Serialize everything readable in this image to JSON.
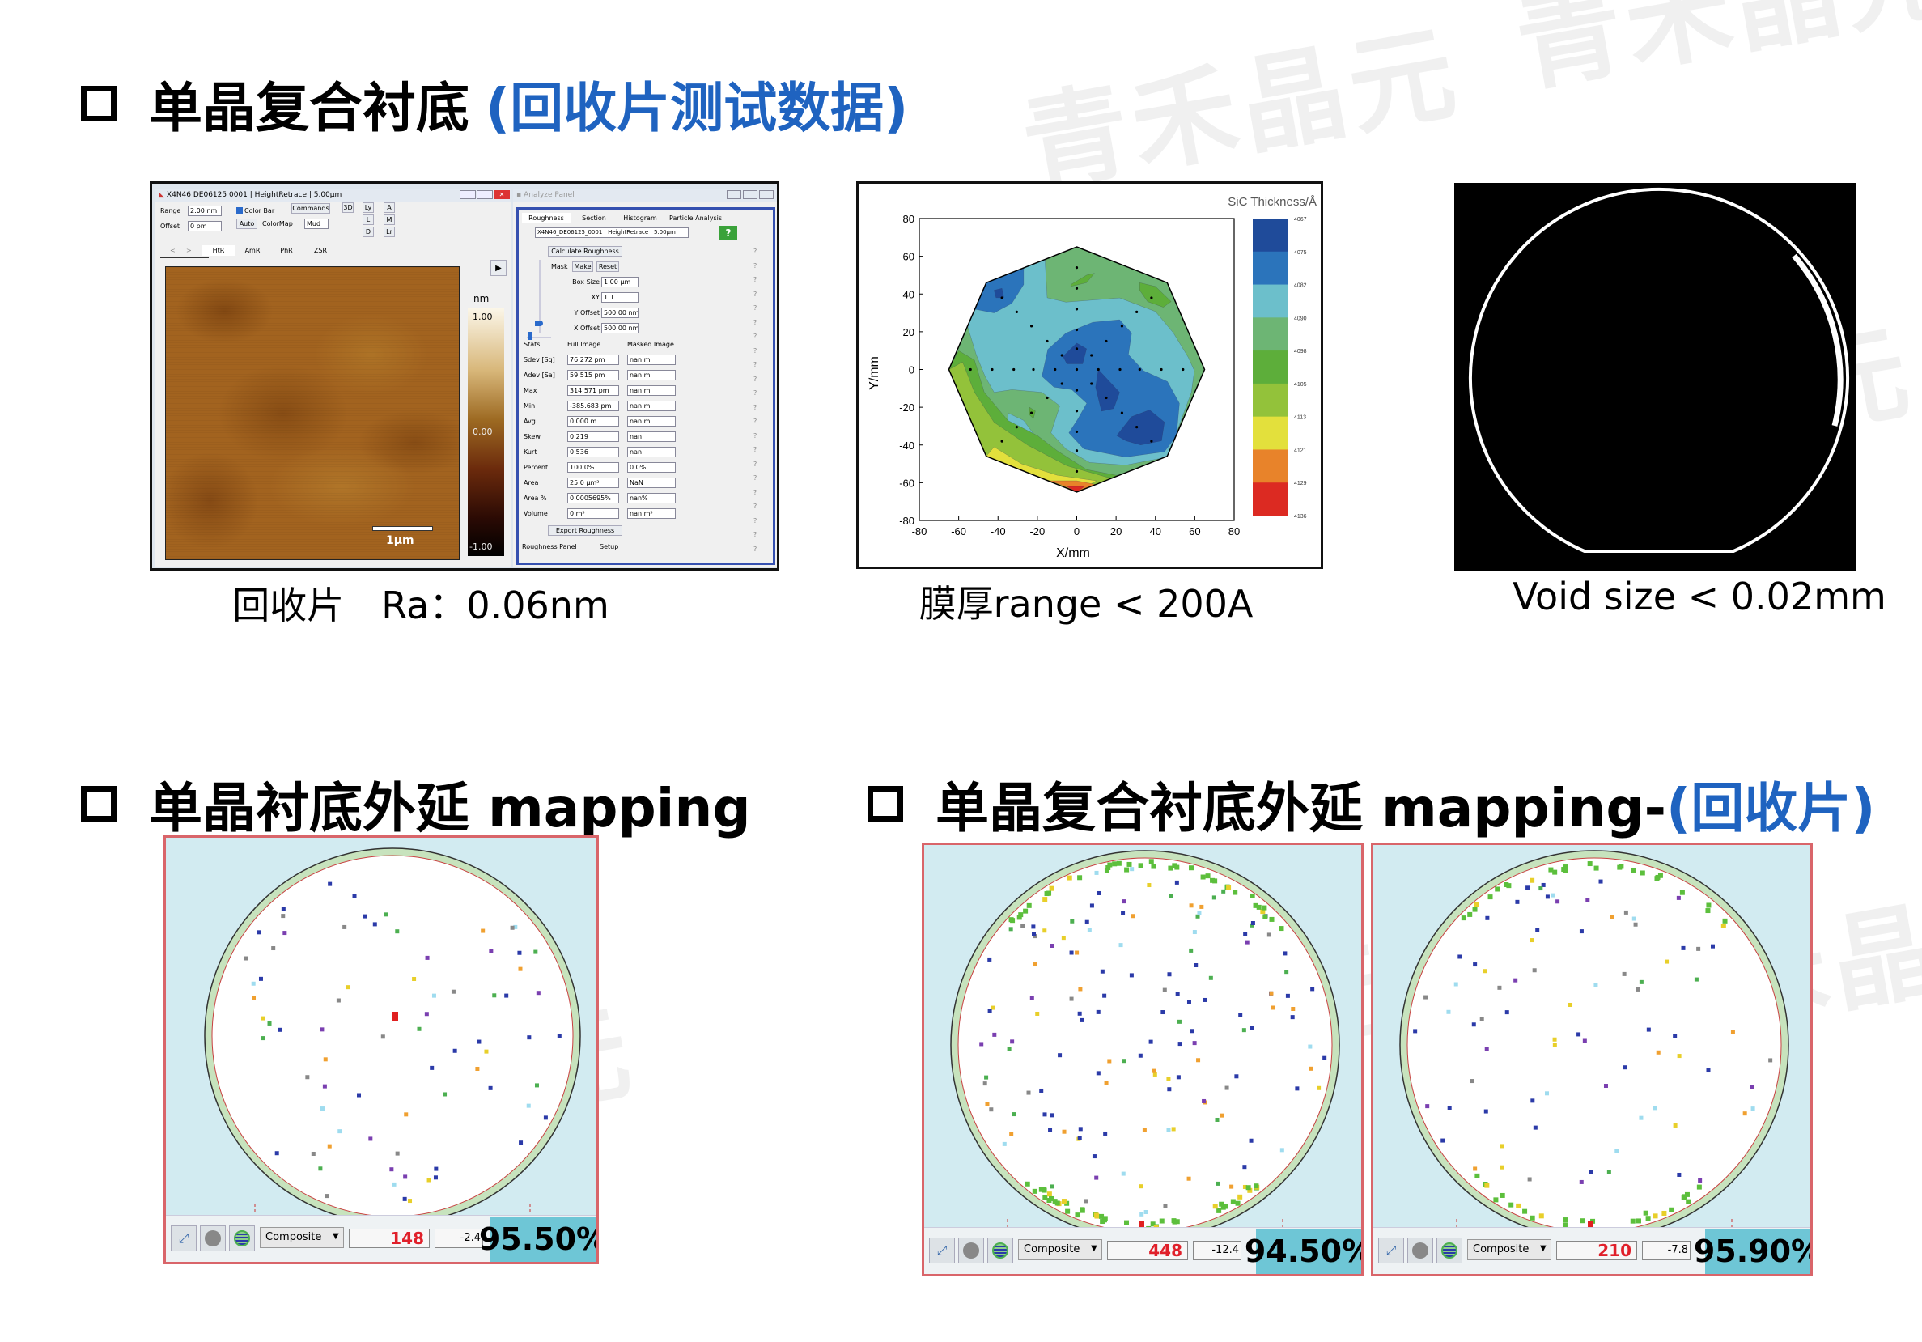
{
  "watermark": "青禾晶元",
  "section1": {
    "title_main": "单晶复合衬底",
    "title_sub": "(回收片测试数据)"
  },
  "afm": {
    "window_title": "X4N46 DE06125 0001 | HeightRetrace | 5.00μm",
    "range_label": "Range",
    "range_value": "2.00 nm",
    "offset_label": "Offset",
    "offset_value": "0 pm",
    "colorbar_checkbox": "Color Bar",
    "colorbar_checked": true,
    "commands": "Commands",
    "auto": "Auto",
    "colormap_label": "ColorMap",
    "colormap_value": "Mud",
    "tool_buttons": [
      "3D",
      "Ly",
      "L",
      "D",
      "A",
      "M",
      "Lr"
    ],
    "nav": [
      "<",
      ">"
    ],
    "tabs": [
      "HtR",
      "AmR",
      "PhR",
      "ZSR"
    ],
    "active_tab": "HtR",
    "scale_bar": "1μm",
    "cbar_unit": "nm",
    "cbar_ticks": [
      "1.00",
      "0.00",
      "-1.00"
    ]
  },
  "analyze": {
    "window_title": "Analyze Panel",
    "tabs": [
      "Roughness",
      "Section",
      "Histogram",
      "Particle Analysis"
    ],
    "active_tab": "Roughness",
    "file": "X4N46_DE06125_0001 | HeightRetrace | 5.00μm",
    "help": "?",
    "calculate": "Calculate Roughness",
    "mask": "Mask",
    "make": "Make",
    "reset": "Reset",
    "box_size_label": "Box Size",
    "box_size": "1.00 μm",
    "xy_label": "XY",
    "xy": "1:1",
    "yoffset_label": "Y Offset",
    "yoffset": "500.00 nm",
    "xoffset_label": "X Offset",
    "xoffset": "500.00 nm",
    "headers": [
      "Stats",
      "Full Image",
      "Masked Image"
    ],
    "rows": [
      {
        "stat": "Sdev [Sq]",
        "full": "76.272 pm",
        "masked": "nan m"
      },
      {
        "stat": "Adev [Sa]",
        "full": "59.515 pm",
        "masked": "nan m"
      },
      {
        "stat": "Max",
        "full": "314.571 pm",
        "masked": "nan m"
      },
      {
        "stat": "Min",
        "full": "-385.683 pm",
        "masked": "nan m"
      },
      {
        "stat": "Avg",
        "full": "0.000 m",
        "masked": "nan m"
      },
      {
        "stat": "Skew",
        "full": "0.219",
        "masked": "nan"
      },
      {
        "stat": "Kurt",
        "full": "0.536",
        "masked": "nan"
      },
      {
        "stat": "Percent",
        "full": "100.0%",
        "masked": "0.0%"
      },
      {
        "stat": "Area",
        "full": "25.0 μm²",
        "masked": "NaN"
      },
      {
        "stat": "Area %",
        "full": "0.0005695%",
        "masked": "nan%"
      },
      {
        "stat": "Volume",
        "full": "0 m³",
        "masked": "nan m³"
      }
    ],
    "export": "Export Roughness",
    "roughness_panel": "Roughness Panel",
    "setup": "Setup"
  },
  "captions": {
    "afm": "回收片　Ra：0.06nm",
    "thickness": "膜厚range < 200A",
    "void": "Void size < 0.02mm"
  },
  "chart_data": {
    "type": "heatmap",
    "subtype": "filled-contour",
    "xlabel": "X/mm",
    "ylabel": "Y/mm",
    "xlim": [
      -80,
      80
    ],
    "ylim": [
      -80,
      80
    ],
    "xticks": [
      -80,
      -60,
      -40,
      -20,
      0,
      20,
      40,
      60,
      80
    ],
    "yticks": [
      -80,
      -60,
      -40,
      -20,
      0,
      20,
      40,
      60,
      80
    ],
    "colorbar_title": "SiC Thickness/Å",
    "colorbar_levels": [
      4067,
      4075,
      4082,
      4090,
      4098,
      4105,
      4113,
      4121,
      4129,
      4136
    ],
    "colorbar_colors": [
      "#1f4b9a",
      "#2b74bb",
      "#6cbfcb",
      "#6db574",
      "#5dae3a",
      "#93c23a",
      "#e3e03c",
      "#e8832a",
      "#dc2a22"
    ],
    "wafer_outline": [
      [
        0,
        65
      ],
      [
        46,
        46
      ],
      [
        65,
        0
      ],
      [
        46,
        -46
      ],
      [
        0,
        -65
      ],
      [
        -46,
        -46
      ],
      [
        -65,
        0
      ],
      [
        -46,
        46
      ]
    ],
    "contours": [
      {
        "level": 4090,
        "polygon": [
          [
            -16,
            62
          ],
          [
            -16,
            56
          ],
          [
            -15,
            38
          ],
          [
            -5.5,
            35.7
          ],
          [
            21.8,
            37.9
          ],
          [
            40,
            30.7
          ],
          [
            49.2,
            19.3
          ],
          [
            56.7,
            6.4
          ],
          [
            59.8,
            -0.7
          ],
          [
            58.3,
            -12.1
          ],
          [
            52.2,
            -29.3
          ],
          [
            46.1,
            -46.4
          ],
          [
            24.8,
            -50.7
          ],
          [
            6.6,
            -49.3
          ],
          [
            -5.5,
            -42.1
          ],
          [
            -13.1,
            -33.6
          ],
          [
            -8.6,
            -19.3
          ],
          [
            -17.7,
            -12.1
          ],
          [
            -32.9,
            -10.7
          ],
          [
            -42,
            -12.1
          ],
          [
            -46.6,
            -3.6
          ],
          [
            -51.1,
            7.9
          ],
          [
            -55.7,
            23.6
          ],
          [
            -48,
            40
          ],
          [
            -40,
            50
          ],
          [
            -25,
            58
          ]
        ]
      },
      {
        "level": 4090,
        "polygon": [
          [
            -35,
            -23
          ],
          [
            -27,
            -27
          ],
          [
            -22,
            -34
          ],
          [
            -30,
            -36
          ],
          [
            -35,
            -30
          ]
        ]
      },
      {
        "level": 4105,
        "polygon": [
          [
            -3,
            45
          ],
          [
            5,
            50
          ],
          [
            9,
            51
          ],
          [
            5,
            46
          ],
          [
            -3,
            44
          ]
        ]
      },
      {
        "level": 4105,
        "polygon": [
          [
            32,
            46
          ],
          [
            40,
            44
          ],
          [
            48,
            36
          ],
          [
            44,
            33
          ],
          [
            36,
            36
          ],
          [
            32,
            42
          ]
        ]
      },
      {
        "level": 4105,
        "polygon": [
          [
            -24,
            -20
          ],
          [
            -21,
            -22
          ],
          [
            -22,
            -26
          ],
          [
            -24,
            -24
          ]
        ]
      },
      {
        "level": 4105,
        "polygon": [
          [
            -65,
            0
          ],
          [
            -60,
            10
          ],
          [
            -52,
            5
          ],
          [
            -47,
            -12
          ],
          [
            -35,
            -27
          ],
          [
            -20,
            -35
          ],
          [
            -10,
            -43
          ],
          [
            5,
            -53
          ],
          [
            20,
            -56
          ],
          [
            32,
            -56
          ],
          [
            0,
            -65
          ],
          [
            -46,
            -46
          ]
        ]
      },
      {
        "level": 4113,
        "polygon": [
          [
            -65,
            0
          ],
          [
            -58,
            4
          ],
          [
            -52,
            -12
          ],
          [
            -42,
            -28
          ],
          [
            -25,
            -40
          ],
          [
            -5,
            -51
          ],
          [
            15,
            -57
          ],
          [
            25,
            -59
          ],
          [
            0,
            -65
          ],
          [
            -46,
            -46
          ]
        ]
      },
      {
        "level": 4121,
        "polygon": [
          [
            -46,
            -46
          ],
          [
            -42,
            -41
          ],
          [
            -28,
            -50
          ],
          [
            -10,
            -56
          ],
          [
            10,
            -59
          ],
          [
            0,
            -65
          ]
        ]
      },
      {
        "level": 4129,
        "polygon": [
          [
            -14,
            -59
          ],
          [
            0,
            -59
          ],
          [
            10,
            -61
          ],
          [
            0,
            -65
          ],
          [
            -8,
            -61
          ]
        ]
      },
      {
        "level": 4136,
        "polygon": [
          [
            -5,
            -62
          ],
          [
            4,
            -62
          ],
          [
            0,
            -65
          ]
        ]
      },
      {
        "level": 4082,
        "polygon": [
          [
            -47,
            46
          ],
          [
            -27,
            56
          ],
          [
            -27,
            45
          ],
          [
            -33,
            35
          ],
          [
            -42,
            30
          ],
          [
            -52,
            32
          ]
        ]
      },
      {
        "level": 4075,
        "polygon": [
          [
            -42,
            42
          ],
          [
            -38,
            43
          ],
          [
            -37,
            38
          ],
          [
            -41,
            38
          ]
        ]
      },
      {
        "level": 4082,
        "polygon": [
          [
            -17.7,
            -3.6
          ],
          [
            -14.7,
            10.7
          ],
          [
            -5.5,
            19.3
          ],
          [
            8.1,
            25
          ],
          [
            21.8,
            26.4
          ],
          [
            27.9,
            19.3
          ],
          [
            26.3,
            7.9
          ],
          [
            34,
            -0.7
          ],
          [
            46.1,
            -6.4
          ],
          [
            52.2,
            -17.9
          ],
          [
            50.7,
            -35
          ],
          [
            44.6,
            -43.6
          ],
          [
            24.8,
            -46.4
          ],
          [
            3.6,
            -42.1
          ],
          [
            -4,
            -33.6
          ],
          [
            0.5,
            -26.4
          ],
          [
            5.1,
            -17.9
          ],
          [
            -2.5,
            -10.7
          ],
          [
            -11.6,
            -9.3
          ]
        ]
      },
      {
        "level": 4075,
        "polygon": [
          [
            -7,
            7
          ],
          [
            0,
            14
          ],
          [
            5,
            11
          ],
          [
            3,
            3
          ],
          [
            -5,
            3
          ]
        ]
      },
      {
        "level": 4075,
        "polygon": [
          [
            11,
            0
          ],
          [
            21.8,
            -12.1
          ],
          [
            18.8,
            -20.7
          ],
          [
            12.6,
            -22.1
          ],
          [
            9.6,
            -9.3
          ]
        ]
      },
      {
        "level": 4075,
        "polygon": [
          [
            20.3,
            -35
          ],
          [
            27.9,
            -25
          ],
          [
            37,
            -21.4
          ],
          [
            44.6,
            -27.9
          ],
          [
            43.1,
            -37.8
          ],
          [
            32.5,
            -40
          ],
          [
            25,
            -37.8
          ]
        ]
      }
    ],
    "measurement_points": [
      [
        0,
        54
      ],
      [
        0,
        43
      ],
      [
        0,
        32
      ],
      [
        0,
        21
      ],
      [
        0,
        11
      ],
      [
        0,
        0
      ],
      [
        0,
        -11
      ],
      [
        0,
        -22
      ],
      [
        0,
        -33
      ],
      [
        0,
        -43
      ],
      [
        0,
        -54
      ],
      [
        -54,
        0
      ],
      [
        -43,
        0
      ],
      [
        -32,
        0
      ],
      [
        -22,
        0
      ],
      [
        -11,
        0
      ],
      [
        11,
        0
      ],
      [
        22,
        0
      ],
      [
        32,
        0
      ],
      [
        43,
        0
      ],
      [
        54,
        0
      ],
      [
        -7.5,
        7.5
      ],
      [
        7.5,
        7.5
      ],
      [
        -7.5,
        -7.5
      ],
      [
        7.5,
        -7.5
      ],
      [
        15,
        15
      ],
      [
        -15,
        15
      ],
      [
        15,
        -15
      ],
      [
        -15,
        -15
      ],
      [
        23,
        23
      ],
      [
        -23,
        23
      ],
      [
        23,
        -23
      ],
      [
        -23,
        -23
      ],
      [
        30.5,
        30.5
      ],
      [
        -30.5,
        30.5
      ],
      [
        30.5,
        -30.5
      ],
      [
        -30.5,
        -30.5
      ],
      [
        38,
        38
      ],
      [
        -38,
        38
      ],
      [
        38,
        -38
      ],
      [
        -38,
        -38
      ]
    ]
  },
  "section2": {
    "title": "单晶衬底外延 mapping"
  },
  "section3": {
    "title_main": "单晶复合衬底外延 mapping-",
    "title_sub": "(回收片)"
  },
  "maps": [
    {
      "dropdown": "Composite",
      "count": "148",
      "value": "-2.4",
      "yield": "95.50%"
    },
    {
      "dropdown": "Composite",
      "count": "448",
      "value": "-12.4",
      "yield": "94.50%"
    },
    {
      "dropdown": "Composite",
      "count": "210",
      "value": "-7.8",
      "yield": "95.90%"
    }
  ],
  "colors": {
    "title_blue": "#1f63c0",
    "map_border": "#d9656a",
    "yield_bg": "#6ec6d6",
    "count_red": "#e0202a"
  }
}
